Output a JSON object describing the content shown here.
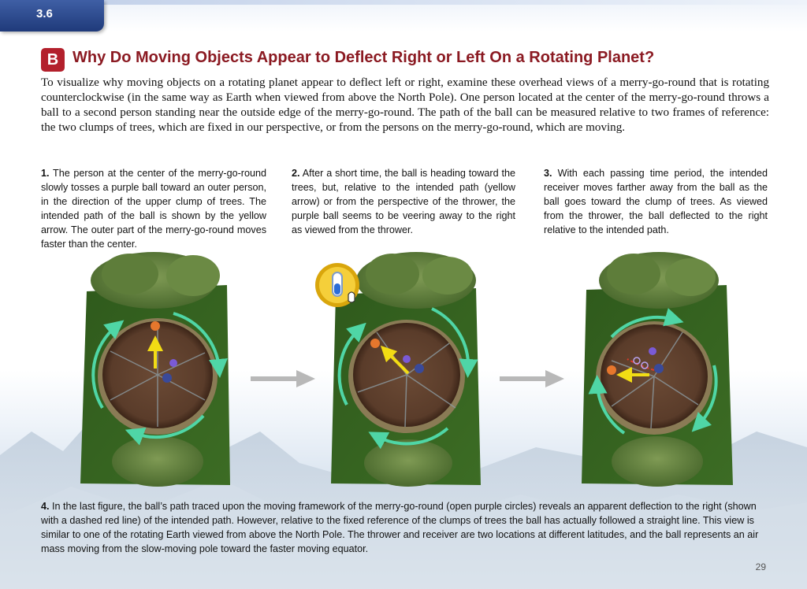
{
  "header": {
    "section": "3.6"
  },
  "heading": {
    "badge": "B",
    "title": "Why Do Moving Objects Appear to Deflect Right or Left On a Rotating Planet?"
  },
  "intro": "To visualize why moving objects on a rotating planet appear to deflect left or right, examine these overhead views of a merry-go-round that is rotating counterclockwise (in the same way as Earth when viewed from above the North Pole). One person located at the center of the merry-go-round throws a ball to a second person standing near the outside edge of the merry-go-round. The path of the ball can be measured relative to two frames of reference: the two clumps of trees, which are fixed in our perspective, or from the persons on the merry-go-round, which are moving.",
  "steps": [
    {
      "num": "1.",
      "text": "The person at the center of the merry-go-round slowly tosses a purple ball toward an outer person, in the direction of the upper clump of trees. The intended path of the ball is shown by the yellow arrow. The outer part of the merry-go-round moves faster than the center."
    },
    {
      "num": "2.",
      "text": "After a short time, the ball is heading toward the trees, but, relative to the intended path (yellow arrow) or from the perspective of the thrower, the purple ball seems to be veering away to the right as viewed from the thrower."
    },
    {
      "num": "3.",
      "text": "With each passing time period, the intended receiver moves farther away from the ball as the ball goes toward the clump of trees. As viewed from the thrower, the ball deflected to the right relative to the intended path."
    }
  ],
  "step4": {
    "num": "4.",
    "text": "In the last figure, the ball’s path traced upon the moving framework of the merry-go-round (open purple circles) reveals an apparent deflection to the right (shown with a dashed red line) of the intended path. However, relative to the fixed reference of the clumps of trees the ball has actually followed a straight line. This view is similar to one of the rotating Earth viewed from above the North Pole. The thrower and receiver are two locations at different latitudes, and the ball represents an air mass moving from the slow-moving pole toward the faster moving equator."
  },
  "page_number": "29",
  "colors": {
    "accent": "#b3202c",
    "title": "#8b1a22",
    "tab": "#2a4a8c",
    "rotation_arrow": "#4fd6a6",
    "path_arrow": "#f2dc14",
    "ball": "#7a5ad6"
  }
}
